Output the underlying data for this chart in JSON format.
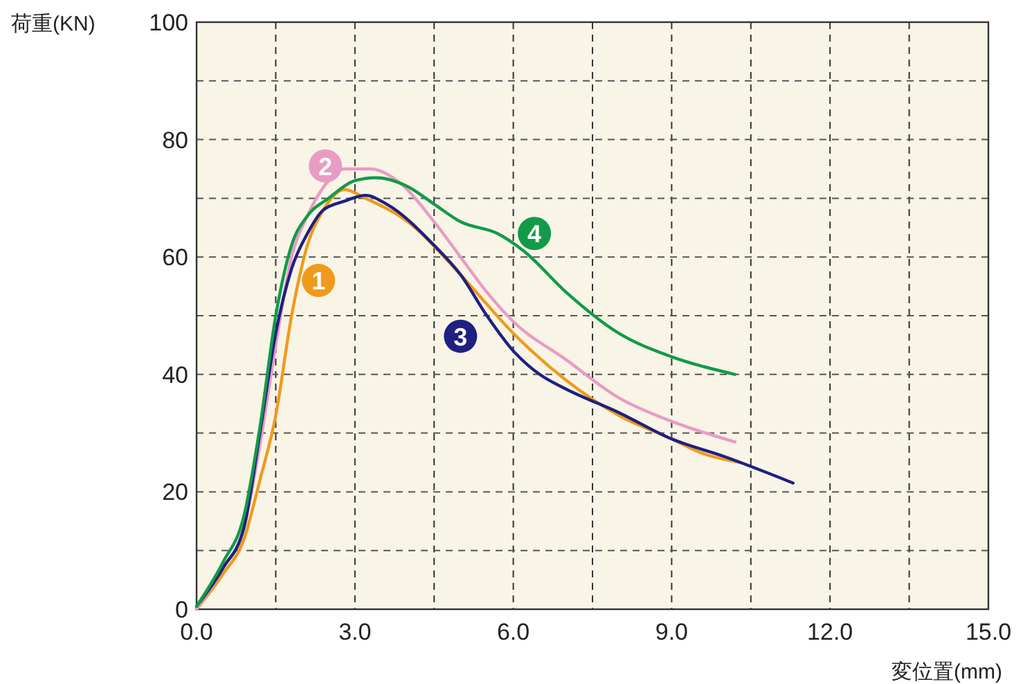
{
  "chart_data": {
    "type": "line",
    "xlabel": "変位置(mm)",
    "ylabel": "荷重(KN)",
    "xlim": [
      0,
      15
    ],
    "ylim": [
      0,
      100
    ],
    "xticks": [
      {
        "value": 0,
        "label": "0.0"
      },
      {
        "value": 1.5,
        "label": null
      },
      {
        "value": 3,
        "label": "3.0"
      },
      {
        "value": 4.5,
        "label": null
      },
      {
        "value": 6,
        "label": "6.0"
      },
      {
        "value": 7.5,
        "label": null
      },
      {
        "value": 9,
        "label": "9.0"
      },
      {
        "value": 10.5,
        "label": null
      },
      {
        "value": 12,
        "label": "12.0"
      },
      {
        "value": 13.5,
        "label": null
      },
      {
        "value": 15,
        "label": "15.0"
      }
    ],
    "yticks": [
      0,
      {
        "value": 10,
        "label": null
      },
      20,
      {
        "value": 30,
        "label": null
      },
      40,
      {
        "value": 50,
        "label": null
      },
      60,
      {
        "value": 70,
        "label": null
      },
      80,
      {
        "value": 90,
        "label": null
      },
      100
    ],
    "grid": true,
    "line_style": "solid",
    "marker": "none",
    "series": [
      {
        "name": "1",
        "color": "#ef9a1c",
        "x": [
          0,
          0.5,
          0.9,
          1.2,
          1.5,
          1.8,
          2.1,
          2.4,
          2.8,
          3.2,
          4.0,
          5.0,
          6.0,
          7.0,
          8.0,
          9.0,
          9.6,
          10.3
        ],
        "values": [
          0,
          6,
          12,
          22,
          33,
          50,
          62,
          68,
          71.5,
          70,
          66,
          57,
          47,
          39,
          33,
          29,
          26.5,
          25
        ]
      },
      {
        "name": "2",
        "color": "#e89cc4",
        "x": [
          0,
          0.5,
          0.9,
          1.2,
          1.5,
          1.8,
          2.1,
          2.5,
          2.8,
          3.3,
          3.8,
          4.5,
          5.0,
          5.5,
          6.0,
          7.0,
          8.0,
          9.0,
          10.2
        ],
        "values": [
          0,
          7,
          14,
          28,
          45,
          60,
          67,
          73,
          75,
          75,
          73,
          66,
          60,
          54,
          49,
          42.5,
          36,
          32,
          28.5
        ]
      },
      {
        "name": "3",
        "color": "#1f2080",
        "x": [
          0,
          0.5,
          0.9,
          1.2,
          1.5,
          1.8,
          2.1,
          2.4,
          2.8,
          3.2,
          3.6,
          4.5,
          5.0,
          5.5,
          6.0,
          6.5,
          7.0,
          8.0,
          9.0,
          10.0,
          11.3
        ],
        "values": [
          0.5,
          7,
          14,
          30,
          47,
          58,
          64,
          68,
          69.5,
          70.5,
          69,
          62,
          57,
          50,
          44,
          40,
          37.5,
          33.5,
          29,
          26,
          21.5
        ]
      },
      {
        "name": "4",
        "color": "#129a48",
        "x": [
          0,
          0.5,
          0.9,
          1.2,
          1.5,
          1.8,
          2.1,
          2.5,
          3.0,
          3.4,
          4.0,
          4.5,
          5.0,
          5.7,
          6.2,
          7.0,
          8.0,
          9.0,
          10.2
        ],
        "values": [
          0.5,
          8,
          16,
          31,
          50,
          62,
          67,
          70,
          73,
          73.5,
          72,
          69,
          66,
          64,
          61,
          54,
          47,
          43,
          40
        ]
      }
    ]
  }
}
